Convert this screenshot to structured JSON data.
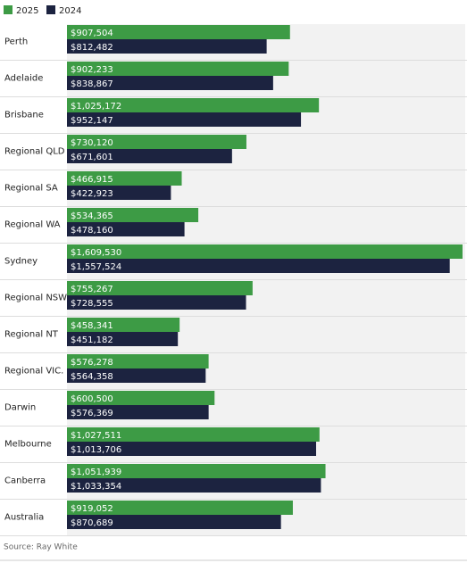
{
  "chart_data": {
    "type": "bar",
    "orientation": "horizontal",
    "categories": [
      "Perth",
      "Adelaide",
      "Brisbane",
      "Regional QLD",
      "Regional SA",
      "Regional WA",
      "Sydney",
      "Regional NSW",
      "Regional NT",
      "Regional VIC.",
      "Darwin",
      "Melbourne",
      "Canberra",
      "Australia"
    ],
    "series": [
      {
        "name": "2025",
        "color": "#3d9b45",
        "values": [
          907504,
          902233,
          1025172,
          730120,
          466915,
          534365,
          1609530,
          755267,
          458341,
          576278,
          600500,
          1027511,
          1051939,
          919052
        ],
        "value_labels": [
          "$907,504",
          "$902,233",
          "$1,025,172",
          "$730,120",
          "$466,915",
          "$534,365",
          "$1,609,530",
          "$755,267",
          "$458,341",
          "$576,278",
          "$600,500",
          "$1,027,511",
          "$1,051,939",
          "$919,052"
        ]
      },
      {
        "name": "2024",
        "color": "#1c2340",
        "values": [
          812482,
          838867,
          952147,
          671601,
          422923,
          478160,
          1557524,
          728555,
          451182,
          564358,
          576369,
          1013706,
          1033354,
          870689
        ],
        "value_labels": [
          "$812,482",
          "$838,867",
          "$952,147",
          "$671,601",
          "$422,923",
          "$478,160",
          "$1,557,524",
          "$728,555",
          "$451,182",
          "$564,358",
          "$576,369",
          "$1,013,706",
          "$1,033,354",
          "$870,689"
        ]
      }
    ],
    "legend": "top-left",
    "source": "Source: Ray White"
  }
}
